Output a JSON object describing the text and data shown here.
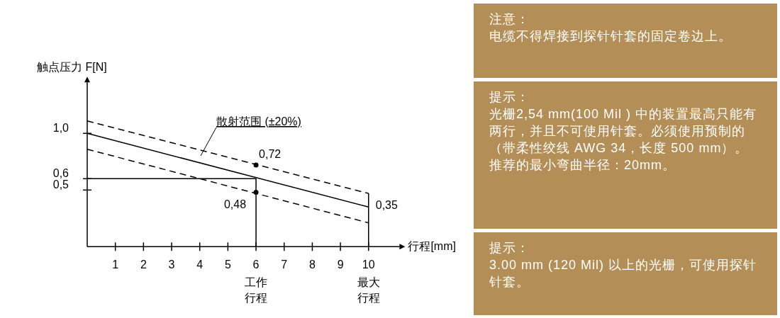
{
  "chart_data": [
    {
      "type": "line",
      "xlabel": "行程[mm]",
      "ylabel": "触点压力 F[N]",
      "x": [
        0,
        10
      ],
      "xlim": [
        0,
        11.1
      ],
      "ylim": [
        0,
        1.45
      ],
      "xticks": [
        1,
        2,
        3,
        4,
        5,
        6,
        7,
        8,
        9,
        10
      ],
      "yticks": [
        {
          "value": 0.5,
          "label": "0,5"
        },
        {
          "value": 0.6,
          "label": "0,6"
        },
        {
          "value": 1.0,
          "label": "1,0"
        }
      ],
      "series": [
        {
          "color": "#000000",
          "line_style": "solid",
          "values": [
            1.0,
            0.35
          ],
          "value_labels": [
            null,
            "0,35"
          ]
        },
        {
          "color": "#000000",
          "line_style": "dashed",
          "values": [
            1.11,
            0.47
          ]
        },
        {
          "color": "#000000",
          "line_style": "dashed",
          "values": [
            0.86,
            0.21
          ]
        },
        {
          "color": "#000000",
          "line_style": "solid",
          "x": [
            0,
            6,
            6
          ],
          "values": [
            0.6,
            0.6,
            0
          ]
        },
        {
          "color": "#000000",
          "line_style": "solid",
          "x": [
            10,
            10
          ],
          "values": [
            0,
            0.47
          ]
        },
        {
          "type": "scatter",
          "color": "#000000",
          "marker": "circle",
          "x": [
            6,
            6
          ],
          "values": [
            0.72,
            0.48
          ],
          "value_labels": [
            "0,72",
            "0,48"
          ]
        }
      ],
      "annotations": [
        "散射范围  (±20%)",
        "工作行程",
        "最大行程"
      ]
    },
    {
      "type": "other",
      "title": "注意：",
      "annotations": [
        "电缆不得焊接到探针针套的固定卷边上。"
      ]
    },
    {
      "type": "other",
      "title": "提示：",
      "annotations": [
        "光栅2,54 mm(100 Mil ) 中的装置最高只能有两行，并且不可使用针套。必须使用预制的（带柔性绞线 AWG 34，长度 500 mm）。推荐的最小弯曲半径：20mm。"
      ]
    },
    {
      "type": "other",
      "title": "提示：",
      "annotations": [
        "3.00 mm (120 Mil) 以上的光栅，可使用探针针套。"
      ]
    }
  ]
}
